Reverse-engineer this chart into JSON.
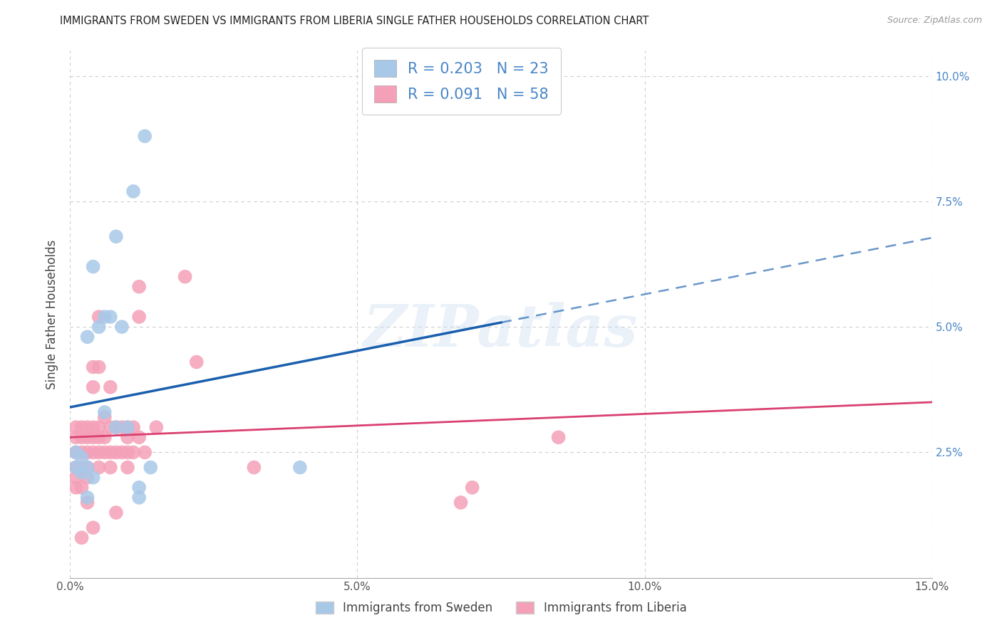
{
  "title": "IMMIGRANTS FROM SWEDEN VS IMMIGRANTS FROM LIBERIA SINGLE FATHER HOUSEHOLDS CORRELATION CHART",
  "source": "Source: ZipAtlas.com",
  "ylabel": "Single Father Households",
  "xlim": [
    0.0,
    0.15
  ],
  "ylim": [
    0.0,
    0.105
  ],
  "xticks": [
    0.0,
    0.05,
    0.1,
    0.15
  ],
  "xtick_labels": [
    "0.0%",
    "5.0%",
    "10.0%",
    "15.0%"
  ],
  "ytick_positions": [
    0.0,
    0.025,
    0.05,
    0.075,
    0.1
  ],
  "ytick_labels": [
    "",
    "2.5%",
    "5.0%",
    "7.5%",
    "10.0%"
  ],
  "sweden_color": "#a8c8e8",
  "liberia_color": "#f4a0b8",
  "sweden_line_color": "#1a5fad",
  "liberia_line_color": "#d94070",
  "sweden_R": 0.203,
  "sweden_N": 23,
  "liberia_R": 0.091,
  "liberia_N": 58,
  "background_color": "#ffffff",
  "grid_color": "#cccccc",
  "watermark": "ZIPatlas",
  "sweden_pts": [
    [
      0.001,
      0.025
    ],
    [
      0.001,
      0.022
    ],
    [
      0.002,
      0.024
    ],
    [
      0.002,
      0.021
    ],
    [
      0.003,
      0.048
    ],
    [
      0.003,
      0.022
    ],
    [
      0.003,
      0.016
    ],
    [
      0.004,
      0.062
    ],
    [
      0.005,
      0.05
    ],
    [
      0.006,
      0.033
    ],
    [
      0.006,
      0.052
    ],
    [
      0.007,
      0.052
    ],
    [
      0.008,
      0.068
    ],
    [
      0.008,
      0.03
    ],
    [
      0.009,
      0.05
    ],
    [
      0.01,
      0.03
    ],
    [
      0.011,
      0.077
    ],
    [
      0.012,
      0.018
    ],
    [
      0.012,
      0.016
    ],
    [
      0.013,
      0.088
    ],
    [
      0.014,
      0.022
    ],
    [
      0.04,
      0.022
    ],
    [
      0.004,
      0.02
    ]
  ],
  "liberia_pts": [
    [
      0.001,
      0.03
    ],
    [
      0.001,
      0.028
    ],
    [
      0.001,
      0.025
    ],
    [
      0.001,
      0.022
    ],
    [
      0.001,
      0.02
    ],
    [
      0.001,
      0.018
    ],
    [
      0.002,
      0.03
    ],
    [
      0.002,
      0.028
    ],
    [
      0.002,
      0.025
    ],
    [
      0.002,
      0.022
    ],
    [
      0.002,
      0.018
    ],
    [
      0.002,
      0.008
    ],
    [
      0.003,
      0.03
    ],
    [
      0.003,
      0.028
    ],
    [
      0.003,
      0.025
    ],
    [
      0.003,
      0.022
    ],
    [
      0.003,
      0.02
    ],
    [
      0.003,
      0.015
    ],
    [
      0.004,
      0.042
    ],
    [
      0.004,
      0.038
    ],
    [
      0.004,
      0.03
    ],
    [
      0.004,
      0.028
    ],
    [
      0.004,
      0.025
    ],
    [
      0.004,
      0.01
    ],
    [
      0.005,
      0.052
    ],
    [
      0.005,
      0.042
    ],
    [
      0.005,
      0.03
    ],
    [
      0.005,
      0.028
    ],
    [
      0.005,
      0.025
    ],
    [
      0.005,
      0.022
    ],
    [
      0.006,
      0.032
    ],
    [
      0.006,
      0.028
    ],
    [
      0.006,
      0.025
    ],
    [
      0.007,
      0.038
    ],
    [
      0.007,
      0.03
    ],
    [
      0.007,
      0.025
    ],
    [
      0.007,
      0.022
    ],
    [
      0.008,
      0.03
    ],
    [
      0.008,
      0.025
    ],
    [
      0.008,
      0.013
    ],
    [
      0.009,
      0.03
    ],
    [
      0.009,
      0.025
    ],
    [
      0.01,
      0.03
    ],
    [
      0.01,
      0.025
    ],
    [
      0.01,
      0.028
    ],
    [
      0.01,
      0.022
    ],
    [
      0.011,
      0.03
    ],
    [
      0.011,
      0.025
    ],
    [
      0.012,
      0.058
    ],
    [
      0.012,
      0.052
    ],
    [
      0.012,
      0.028
    ],
    [
      0.013,
      0.025
    ],
    [
      0.015,
      0.03
    ],
    [
      0.02,
      0.06
    ],
    [
      0.022,
      0.043
    ],
    [
      0.032,
      0.022
    ],
    [
      0.085,
      0.028
    ],
    [
      0.07,
      0.018
    ],
    [
      0.068,
      0.015
    ]
  ]
}
